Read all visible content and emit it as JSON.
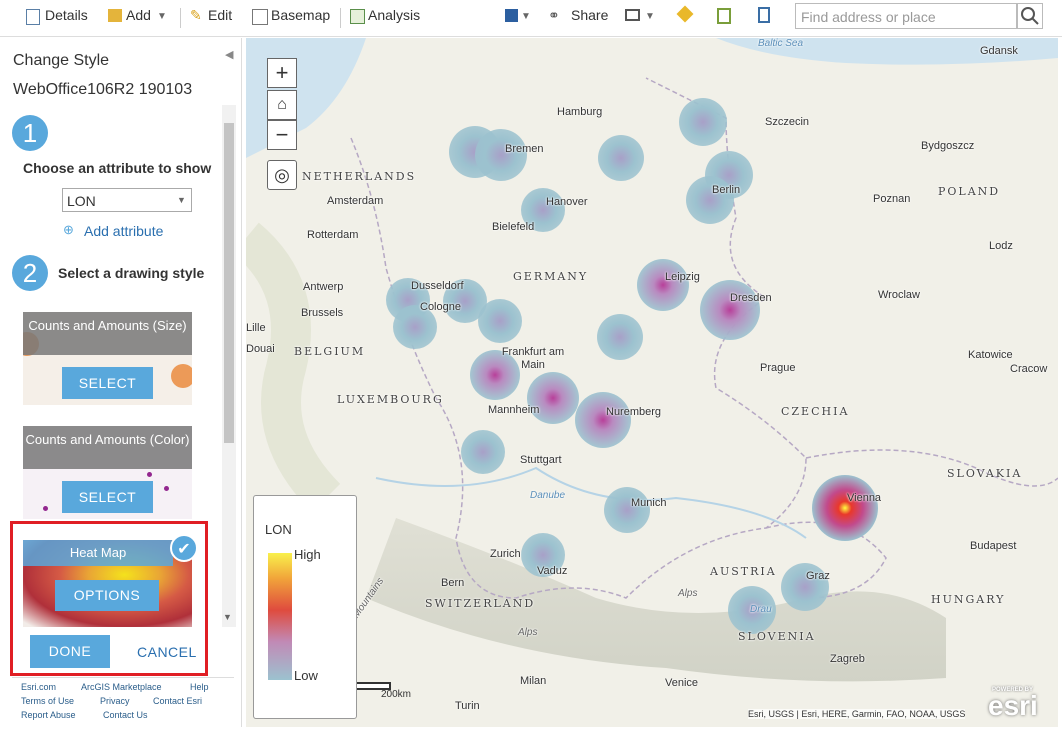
{
  "toolbar": {
    "details": "Details",
    "add": "Add",
    "edit": "Edit",
    "basemap": "Basemap",
    "analysis": "Analysis",
    "share": "Share",
    "search_placeholder": "Find address or place"
  },
  "panel": {
    "title": "Change Style",
    "layer": "WebOffice106R2 190103",
    "step1": {
      "number": "1",
      "label": "Choose an attribute to show",
      "attribute": "LON",
      "add_attribute": "Add attribute"
    },
    "step2": {
      "number": "2",
      "label": "Select a drawing style"
    },
    "styles": [
      {
        "name": "Counts and Amounts (Size)",
        "button": "SELECT"
      },
      {
        "name": "Counts and Amounts (Color)",
        "button": "SELECT"
      },
      {
        "name": "Heat Map",
        "button": "OPTIONS"
      }
    ],
    "done": "DONE",
    "cancel": "CANCEL"
  },
  "footer_links": [
    "Esri.com",
    "ArcGIS Marketplace",
    "Help",
    "Terms of Use",
    "Privacy",
    "Contact Esri",
    "Report Abuse",
    "Contact Us"
  ],
  "map": {
    "labels": [
      "Baltic Sea",
      "Gdansk",
      "Hamburg",
      "Szczecin",
      "Bremen",
      "Bydgoszcz",
      "NETHERLANDS",
      "Berlin",
      "Amsterdam",
      "Hanover",
      "Poznan",
      "POLAND",
      "Bielefeld",
      "Rotterdam",
      "Lodz",
      "GERMANY",
      "Leipzig",
      "Dusseldorf",
      "Antwerp",
      "Wroclaw",
      "Dresden",
      "Cologne",
      "Brussels",
      "Lille",
      "Douai",
      "BELGIUM",
      "Frankfurt am Main",
      "Katowice",
      "Prague",
      "Cracow",
      "LUXEMBOURG",
      "Mannheim",
      "Nuremberg",
      "CZECHIA",
      "Stuttgart",
      "SLOVAKIA",
      "Danube",
      "Munich",
      "Vienna",
      "Budapest",
      "Zurich",
      "Vaduz",
      "AUSTRIA",
      "Graz",
      "Bern",
      "SWITZERLAND",
      "HUNGARY",
      "Jura Mountains",
      "Alps",
      "Alps",
      "Drau",
      "SLOVENIA",
      "Zagreb",
      "Milan",
      "Venice",
      "Turin"
    ],
    "legend": {
      "title": "LON",
      "high": "High",
      "low": "Low"
    },
    "scale": "200km",
    "attribution": "Esri, USGS | Esri, HERE, Garmin, FAO, NOAA, USGS",
    "powered_by": "POWERED BY",
    "logo": "esri"
  }
}
